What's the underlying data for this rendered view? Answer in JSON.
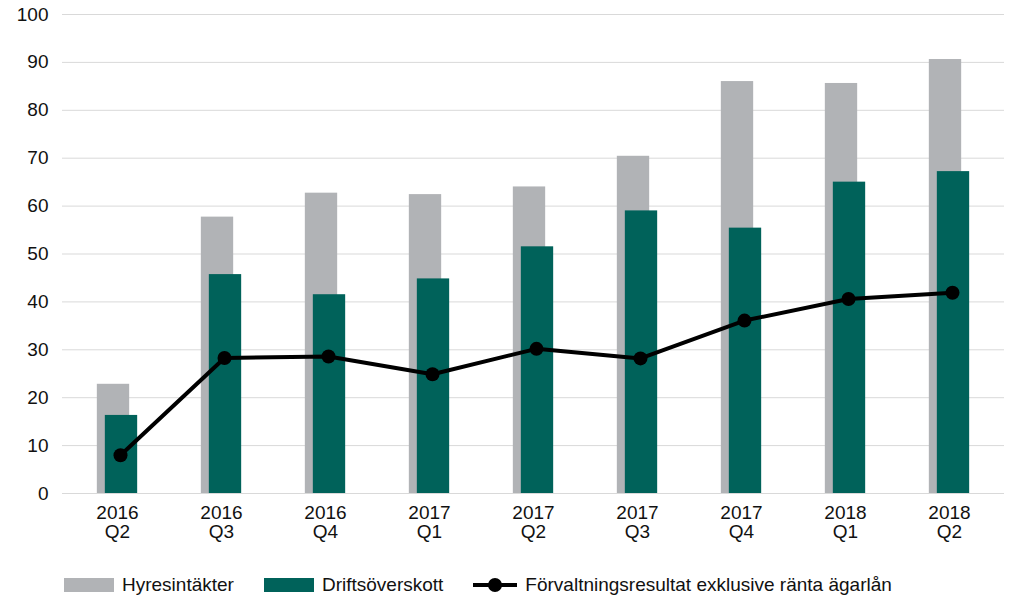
{
  "chart_data": {
    "type": "bar",
    "categories": [
      "2016\nQ2",
      "2016\nQ3",
      "2016\nQ4",
      "2017\nQ1",
      "2017\nQ2",
      "2017\nQ3",
      "2017\nQ4",
      "2018\nQ1",
      "2018\nQ2"
    ],
    "series": [
      {
        "name": "Hyresintäkter",
        "type": "bar",
        "color": "#b1b3b6",
        "values": [
          22.8,
          57.7,
          62.7,
          62.4,
          64.0,
          70.4,
          86.0,
          85.6,
          90.6
        ]
      },
      {
        "name": "Driftsöverskott",
        "type": "bar",
        "color": "#00625a",
        "values": [
          16.3,
          45.7,
          41.5,
          44.8,
          51.5,
          59.0,
          55.4,
          65.0,
          67.2
        ]
      },
      {
        "name": "Förvaltningsresultat exklusive ränta ägarlån",
        "type": "line",
        "color": "#000000",
        "marker": "circle",
        "values": [
          8.0,
          28.3,
          28.6,
          24.9,
          30.2,
          28.2,
          36.1,
          40.6,
          41.9
        ]
      }
    ],
    "ylim": [
      0,
      100
    ],
    "yticks": [
      0,
      10,
      20,
      30,
      40,
      50,
      60,
      70,
      80,
      90,
      100
    ],
    "grid": true,
    "legend": "bottom"
  }
}
